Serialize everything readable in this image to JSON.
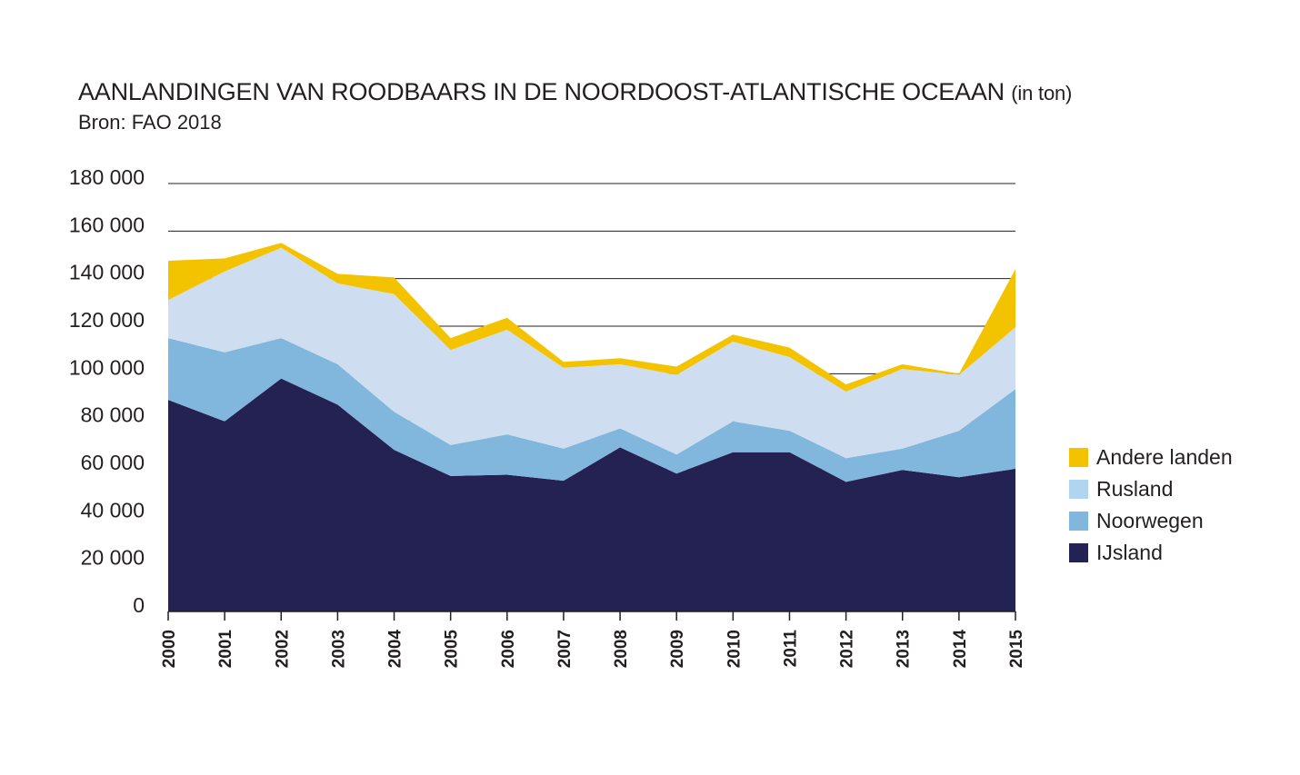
{
  "title": {
    "main": "AANLANDINGEN VAN ROODBAARS IN DE NOORDOOST-ATLANTISCHE OCEAAN",
    "unit": "(in ton)"
  },
  "source": "Bron: FAO 2018",
  "colors": {
    "IJsland": "#242153",
    "Noorwegen": "#81b7dd",
    "Rusland": "#cedef0",
    "Andere landen": "#f4c300",
    "Rusland_legend": "#b1d5f0"
  },
  "legend": [
    {
      "label": "Andere landen",
      "color": "#f4c300"
    },
    {
      "label": "Rusland",
      "color": "#b1d5f0"
    },
    {
      "label": "Noorwegen",
      "color": "#81b7dd"
    },
    {
      "label": "IJsland",
      "color": "#242153"
    }
  ],
  "chart_data": {
    "type": "area",
    "stacked": true,
    "x": [
      "2000",
      "2001",
      "2002",
      "2003",
      "2004",
      "2005",
      "2006",
      "2007",
      "2008",
      "2009",
      "2010",
      "2011",
      "2012",
      "2013",
      "2014",
      "2015"
    ],
    "series": [
      {
        "name": "IJsland",
        "values": [
          89000,
          80000,
          98000,
          87000,
          68000,
          57000,
          57500,
          55000,
          69000,
          58000,
          67000,
          67000,
          54500,
          59500,
          56500,
          60000
        ]
      },
      {
        "name": "Noorwegen",
        "values": [
          26000,
          29000,
          17000,
          17000,
          16000,
          13000,
          17000,
          13500,
          8000,
          8000,
          13000,
          9000,
          10000,
          9000,
          19500,
          33500
        ]
      },
      {
        "name": "Rusland",
        "values": [
          16000,
          34000,
          38000,
          34000,
          49500,
          40000,
          44000,
          34000,
          27000,
          33500,
          33500,
          31000,
          28000,
          33500,
          23500,
          26000
        ]
      },
      {
        "name": "Andere landen",
        "values": [
          16500,
          5500,
          2000,
          4000,
          7000,
          5000,
          5000,
          2500,
          2500,
          3500,
          3000,
          4000,
          3000,
          2000,
          500,
          24500
        ]
      }
    ],
    "yticks": [
      "0",
      "20 000",
      "40 000",
      "60 000",
      "80 000",
      "100 000",
      "120 000",
      "140 000",
      "160 000",
      "180 000"
    ],
    "ylim": [
      0,
      180000
    ],
    "grid": "horizontal",
    "legend_position": "right"
  }
}
